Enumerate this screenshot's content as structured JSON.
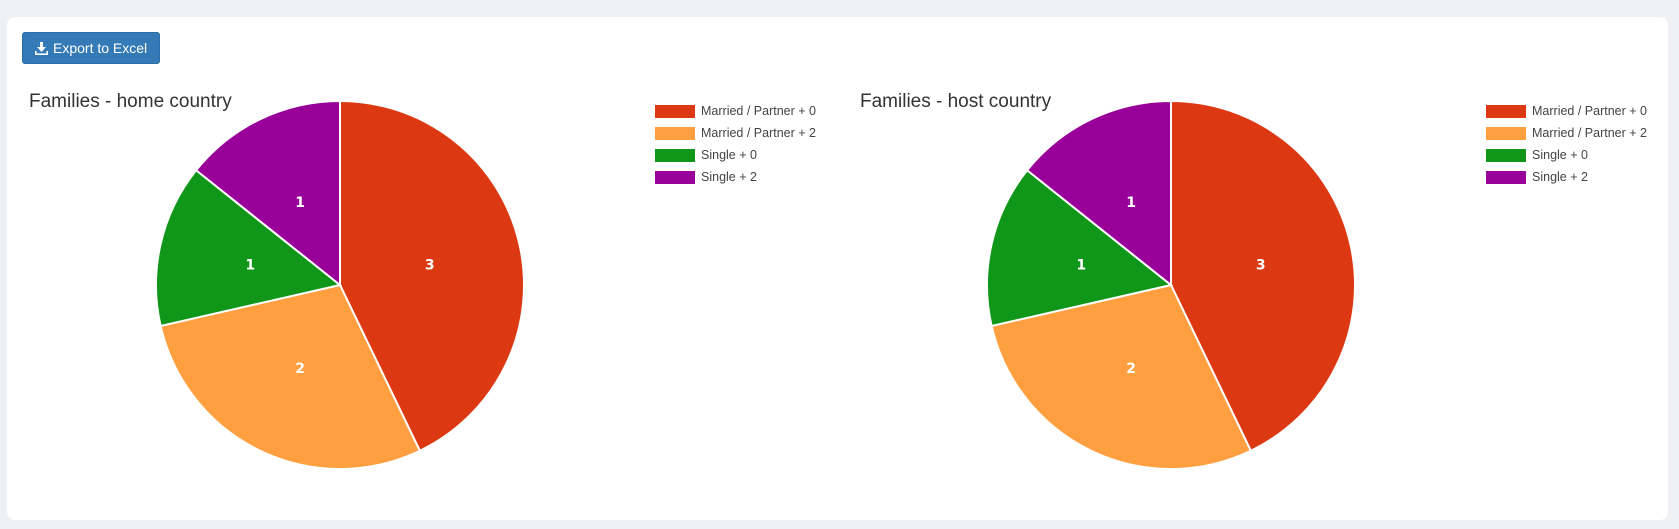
{
  "toolbar": {
    "export_label": "Export to Excel",
    "export_icon": "download-icon"
  },
  "colors": {
    "married_0": "#dc3912",
    "married_2": "#ff9f40",
    "single_0": "#109618",
    "single_2": "#990099",
    "button": "#337ab7"
  },
  "chart_data": [
    {
      "type": "pie",
      "title": "Families - home country",
      "categories": [
        "Married / Partner + 0",
        "Married / Partner + 2",
        "Single + 0",
        "Single + 2"
      ],
      "values": [
        3,
        2,
        1,
        1
      ],
      "colors": [
        "#dc3912",
        "#ff9f40",
        "#109618",
        "#990099"
      ],
      "legend": "top-right",
      "data_labels": true
    },
    {
      "type": "pie",
      "title": "Families - host country",
      "categories": [
        "Married / Partner + 0",
        "Married / Partner + 2",
        "Single + 0",
        "Single + 2"
      ],
      "values": [
        3,
        2,
        1,
        1
      ],
      "colors": [
        "#dc3912",
        "#ff9f40",
        "#109618",
        "#990099"
      ],
      "legend": "top-right",
      "data_labels": true
    }
  ]
}
